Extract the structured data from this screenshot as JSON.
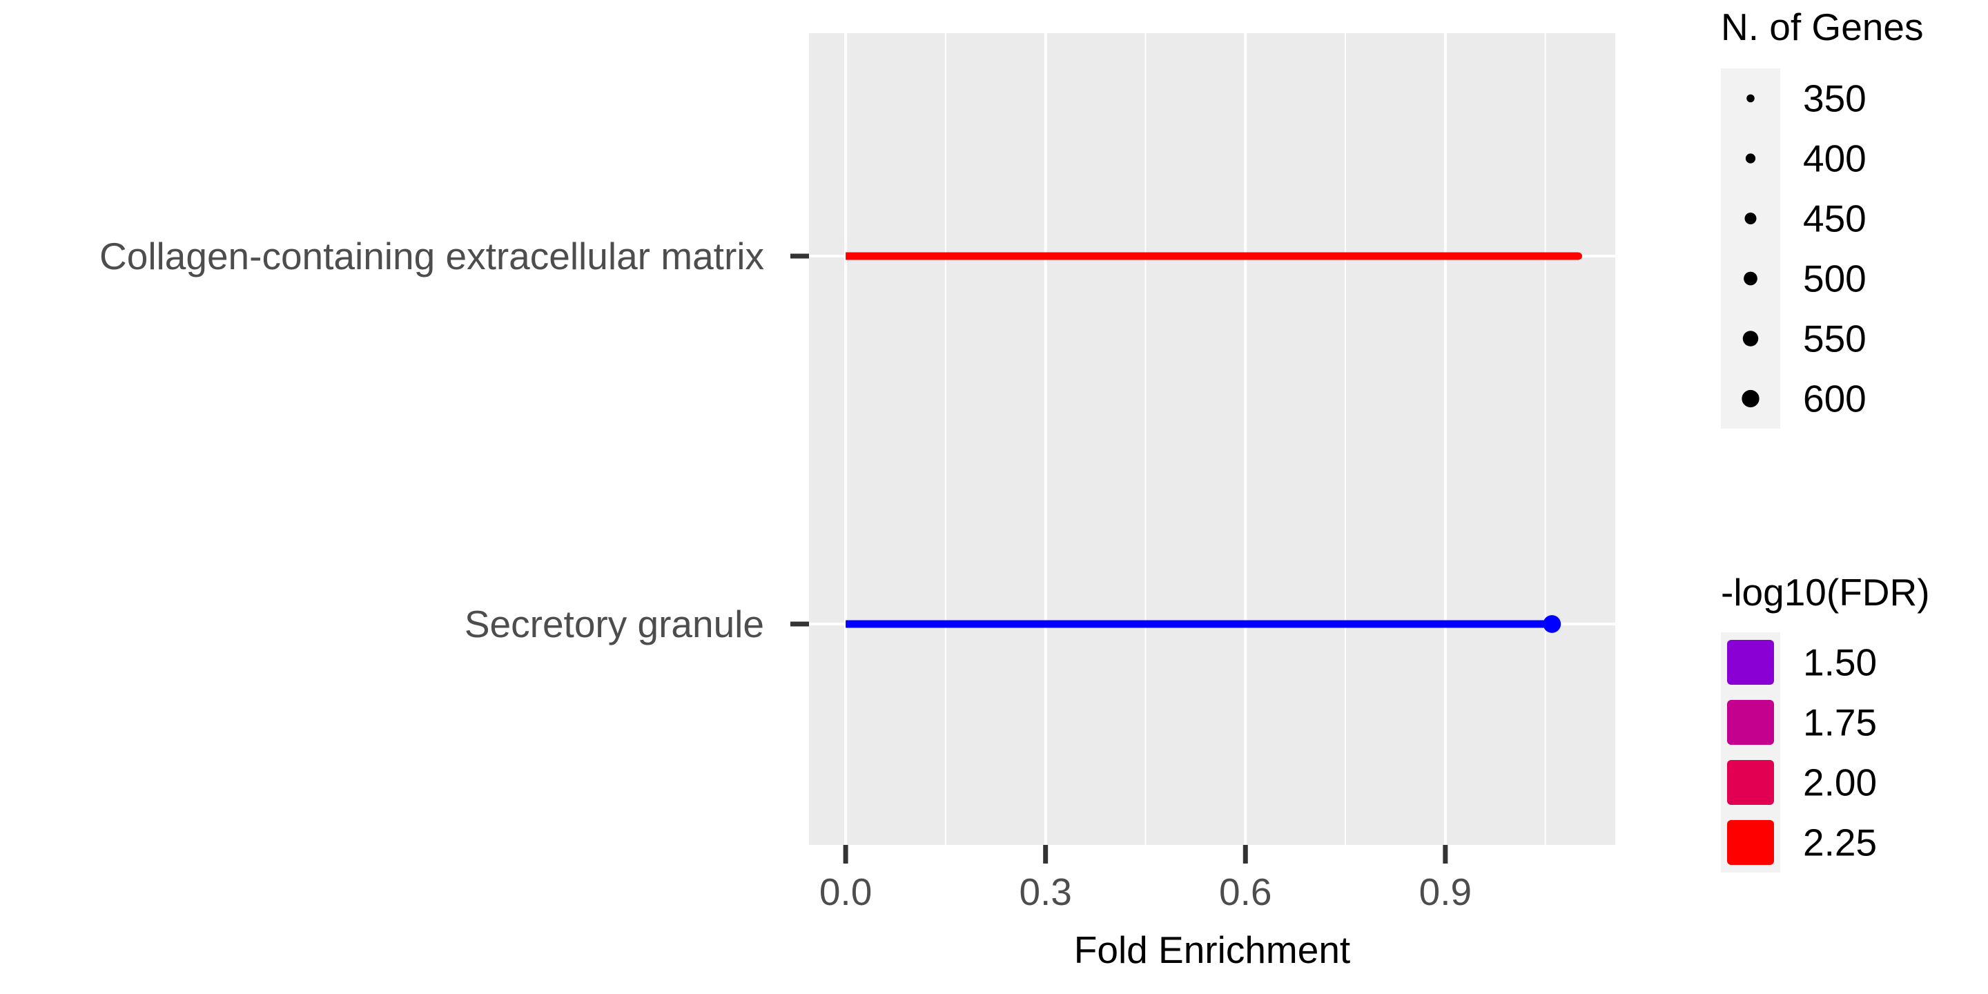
{
  "chart_data": {
    "type": "lollipop",
    "categories": [
      "Collagen-containing extracellular matrix",
      "Secretory granule"
    ],
    "points": [
      {
        "category": "Collagen-containing extracellular matrix",
        "fold_enrichment": 1.1,
        "n_genes": 330,
        "neg_log10_fdr": 2.3,
        "color": "#FF0000"
      },
      {
        "category": "Secretory granule",
        "fold_enrichment": 1.06,
        "n_genes": 610,
        "neg_log10_fdr": 1.4,
        "color": "#0000FF"
      }
    ],
    "xlabel": "Fold Enrichment",
    "ylabel": "",
    "xlim": [
      -0.055,
      1.155
    ],
    "xticks": [
      0.0,
      0.3,
      0.6,
      0.9
    ],
    "xtick_labels": [
      "0.0",
      "0.3",
      "0.6",
      "0.9"
    ],
    "grid": true,
    "size_legend": {
      "title": "N. of Genes",
      "entries": [
        {
          "label": "350",
          "value": 350
        },
        {
          "label": "400",
          "value": 400
        },
        {
          "label": "450",
          "value": 450
        },
        {
          "label": "500",
          "value": 500
        },
        {
          "label": "550",
          "value": 550
        },
        {
          "label": "600",
          "value": 600
        }
      ],
      "color": "#000000"
    },
    "color_legend": {
      "title": "-log10(FDR)",
      "entries": [
        {
          "label": "1.50",
          "color": "#8A00D4"
        },
        {
          "label": "1.75",
          "color": "#C4008F"
        },
        {
          "label": "2.00",
          "color": "#E10052"
        },
        {
          "label": "2.25",
          "color": "#FF0000"
        }
      ]
    },
    "colors": {
      "panel_background": "#EBEBEB",
      "gridline": "#FFFFFF",
      "tick_mark": "#333333",
      "axis_text": "#4D4D4D",
      "legend_key_background": "#F2F2F2"
    }
  }
}
